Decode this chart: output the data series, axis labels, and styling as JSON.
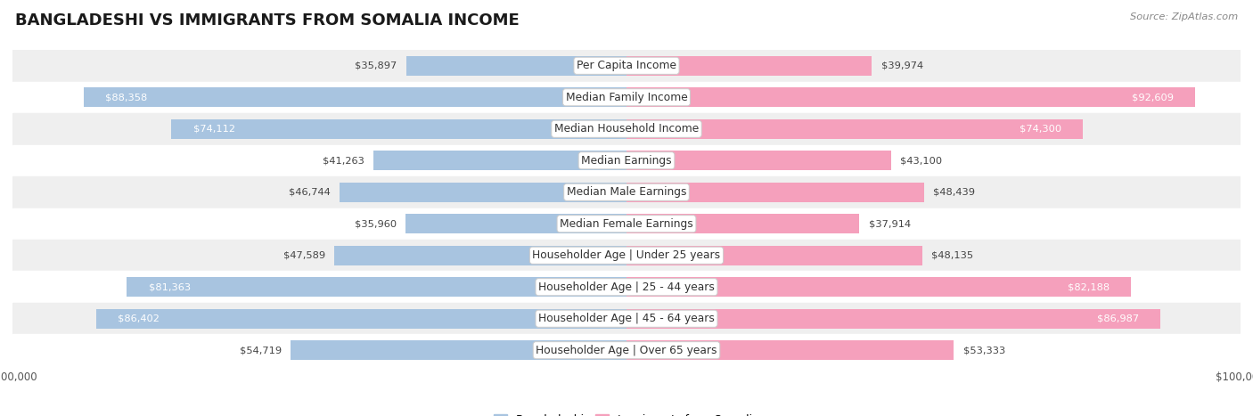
{
  "title": "BANGLADESHI VS IMMIGRANTS FROM SOMALIA INCOME",
  "source": "Source: ZipAtlas.com",
  "categories": [
    "Per Capita Income",
    "Median Family Income",
    "Median Household Income",
    "Median Earnings",
    "Median Male Earnings",
    "Median Female Earnings",
    "Householder Age | Under 25 years",
    "Householder Age | 25 - 44 years",
    "Householder Age | 45 - 64 years",
    "Householder Age | Over 65 years"
  ],
  "bangladeshi": [
    35897,
    88358,
    74112,
    41263,
    46744,
    35960,
    47589,
    81363,
    86402,
    54719
  ],
  "somalia": [
    39974,
    92609,
    74300,
    43100,
    48439,
    37914,
    48135,
    82188,
    86987,
    53333
  ],
  "max_val": 100000,
  "blue_color": "#a8c4e0",
  "pink_color": "#f5a0bc",
  "row_bg_gray": "#efefef",
  "row_bg_white": "#ffffff",
  "label_font_size": 8.8,
  "value_font_size": 8.2,
  "title_font_size": 13,
  "threshold": 60000
}
